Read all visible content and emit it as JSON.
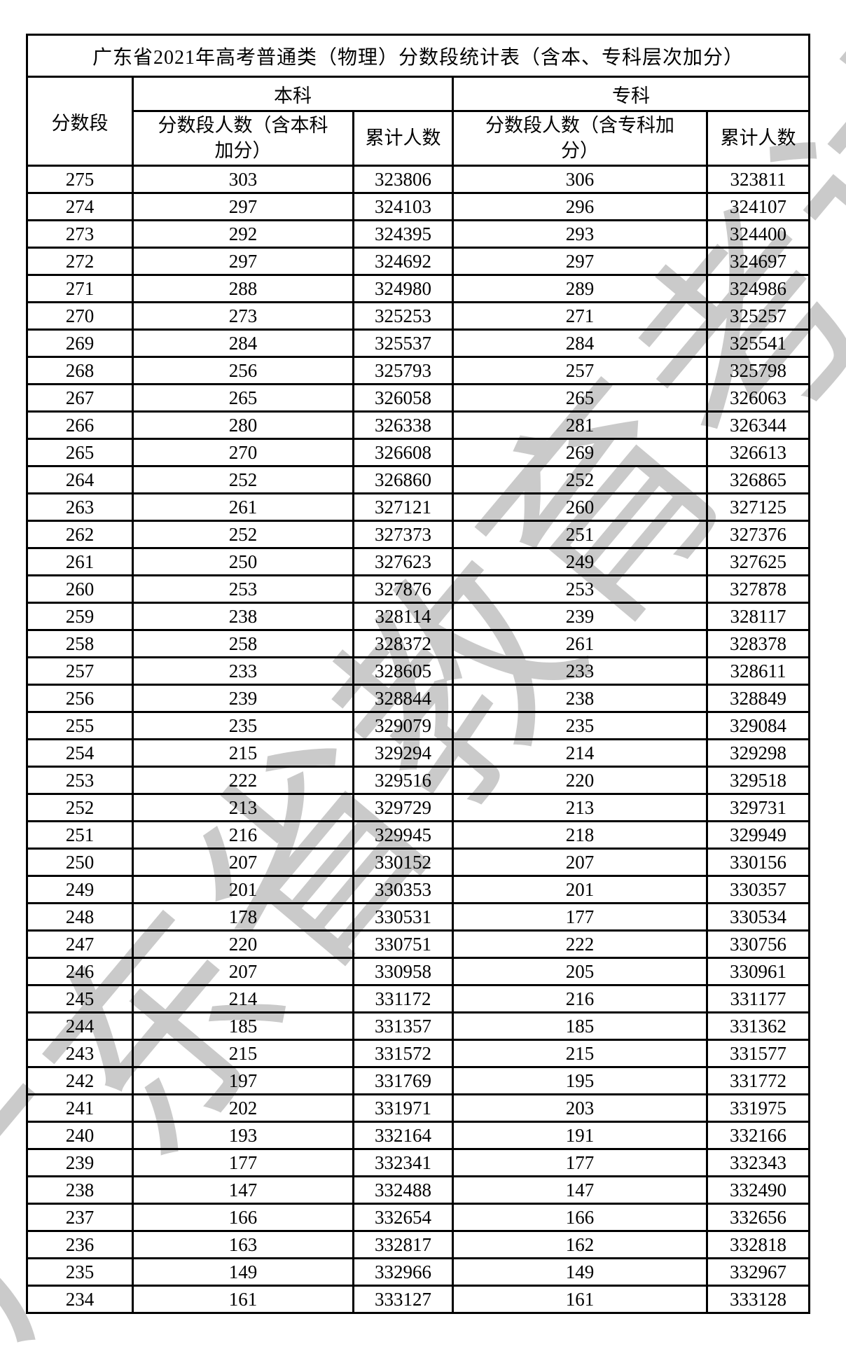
{
  "title": "广东省2021年高考普通类（物理）分数段统计表（含本、专科层次加分）",
  "watermark": "广东省教育考试院",
  "colors": {
    "background": "#ffffff",
    "border": "#000000",
    "watermark": "#cacaca"
  },
  "table": {
    "col_score": "分数段",
    "group_undergrad": "本科",
    "group_college": "专科",
    "col_undergrad_count": "分数段人数（含本科\n加分）",
    "col_undergrad_cum": "累计人数",
    "col_college_count": "分数段人数（含专科加\n分）",
    "col_college_cum": "累计人数",
    "rows": [
      [
        275,
        303,
        323806,
        306,
        323811
      ],
      [
        274,
        297,
        324103,
        296,
        324107
      ],
      [
        273,
        292,
        324395,
        293,
        324400
      ],
      [
        272,
        297,
        324692,
        297,
        324697
      ],
      [
        271,
        288,
        324980,
        289,
        324986
      ],
      [
        270,
        273,
        325253,
        271,
        325257
      ],
      [
        269,
        284,
        325537,
        284,
        325541
      ],
      [
        268,
        256,
        325793,
        257,
        325798
      ],
      [
        267,
        265,
        326058,
        265,
        326063
      ],
      [
        266,
        280,
        326338,
        281,
        326344
      ],
      [
        265,
        270,
        326608,
        269,
        326613
      ],
      [
        264,
        252,
        326860,
        252,
        326865
      ],
      [
        263,
        261,
        327121,
        260,
        327125
      ],
      [
        262,
        252,
        327373,
        251,
        327376
      ],
      [
        261,
        250,
        327623,
        249,
        327625
      ],
      [
        260,
        253,
        327876,
        253,
        327878
      ],
      [
        259,
        238,
        328114,
        239,
        328117
      ],
      [
        258,
        258,
        328372,
        261,
        328378
      ],
      [
        257,
        233,
        328605,
        233,
        328611
      ],
      [
        256,
        239,
        328844,
        238,
        328849
      ],
      [
        255,
        235,
        329079,
        235,
        329084
      ],
      [
        254,
        215,
        329294,
        214,
        329298
      ],
      [
        253,
        222,
        329516,
        220,
        329518
      ],
      [
        252,
        213,
        329729,
        213,
        329731
      ],
      [
        251,
        216,
        329945,
        218,
        329949
      ],
      [
        250,
        207,
        330152,
        207,
        330156
      ],
      [
        249,
        201,
        330353,
        201,
        330357
      ],
      [
        248,
        178,
        330531,
        177,
        330534
      ],
      [
        247,
        220,
        330751,
        222,
        330756
      ],
      [
        246,
        207,
        330958,
        205,
        330961
      ],
      [
        245,
        214,
        331172,
        216,
        331177
      ],
      [
        244,
        185,
        331357,
        185,
        331362
      ],
      [
        243,
        215,
        331572,
        215,
        331577
      ],
      [
        242,
        197,
        331769,
        195,
        331772
      ],
      [
        241,
        202,
        331971,
        203,
        331975
      ],
      [
        240,
        193,
        332164,
        191,
        332166
      ],
      [
        239,
        177,
        332341,
        177,
        332343
      ],
      [
        238,
        147,
        332488,
        147,
        332490
      ],
      [
        237,
        166,
        332654,
        166,
        332656
      ],
      [
        236,
        163,
        332817,
        162,
        332818
      ],
      [
        235,
        149,
        332966,
        149,
        332967
      ],
      [
        234,
        161,
        333127,
        161,
        333128
      ]
    ]
  }
}
